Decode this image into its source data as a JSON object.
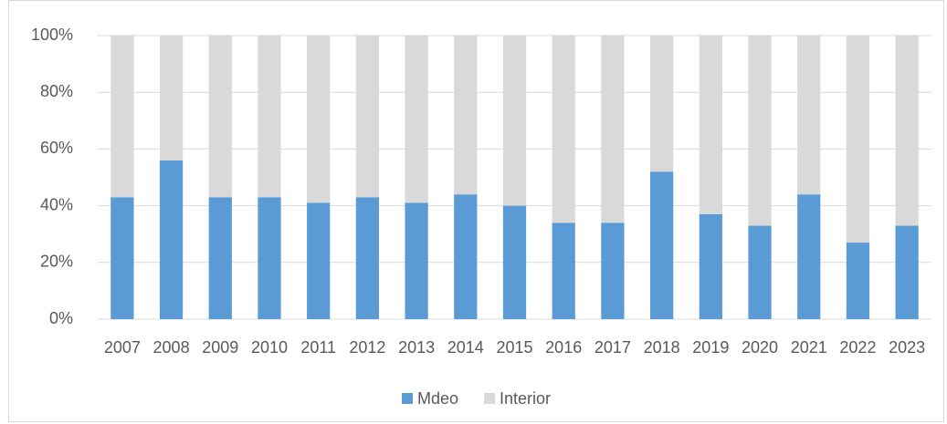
{
  "chart_data": {
    "type": "stacked_bar",
    "categories": [
      "2007",
      "2008",
      "2009",
      "2010",
      "2011",
      "2012",
      "2013",
      "2014",
      "2015",
      "2016",
      "2017",
      "2018",
      "2019",
      "2020",
      "2021",
      "2022",
      "2023"
    ],
    "series": [
      {
        "name": "Mdeo",
        "color": "#5b9bd5",
        "values": [
          43,
          56,
          43,
          43,
          41,
          43,
          41,
          44,
          40,
          34,
          34,
          52,
          37,
          33,
          44,
          27,
          33
        ]
      },
      {
        "name": "Interior",
        "color": "#d9d9d9",
        "values": [
          57,
          44,
          57,
          57,
          59,
          57,
          59,
          56,
          60,
          66,
          66,
          48,
          63,
          67,
          56,
          73,
          67
        ]
      }
    ],
    "ylim": [
      0,
      100
    ],
    "yticks": [
      {
        "value": 0,
        "label": "0%"
      },
      {
        "value": 20,
        "label": "20%"
      },
      {
        "value": 40,
        "label": "40%"
      },
      {
        "value": 60,
        "label": "60%"
      },
      {
        "value": 80,
        "label": "80%"
      },
      {
        "value": 100,
        "label": "100%"
      }
    ],
    "grid": true,
    "legend": "bottom"
  }
}
